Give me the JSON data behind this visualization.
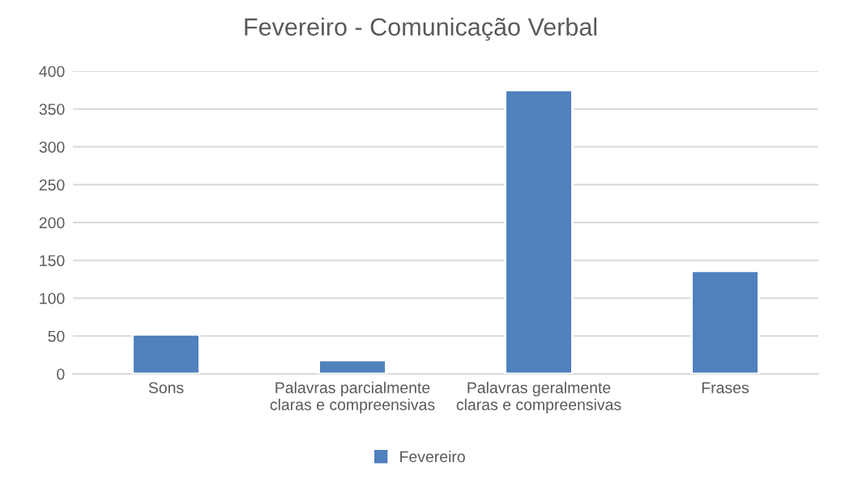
{
  "chart_data": {
    "type": "bar",
    "title": "Fevereiro - Comunicação Verbal",
    "categories": [
      "Sons",
      "Palavras parcialmente\nclaras e compreensivas",
      "Palavras geralmente\nclaras e compreensivas",
      "Frases"
    ],
    "series": [
      {
        "name": "Fevereiro",
        "color": "#4f81bd",
        "values": [
          52,
          18,
          375,
          136
        ]
      }
    ],
    "ylim": [
      0,
      400
    ],
    "yticks": [
      0,
      50,
      100,
      150,
      200,
      250,
      300,
      350,
      400
    ],
    "grid": "y",
    "legend": "bottom"
  }
}
